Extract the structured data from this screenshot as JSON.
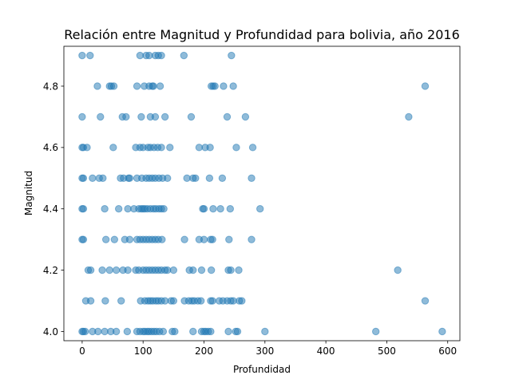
{
  "chart_data": {
    "type": "scatter",
    "title": "Relación entre Magnitud y Profundidad para bolivia, año 2016",
    "xlabel": "Profundidad",
    "ylabel": "Magnitud",
    "xlim": [
      -30,
      620
    ],
    "ylim": [
      3.97,
      4.93
    ],
    "x_ticks": [
      0,
      100,
      200,
      300,
      400,
      500,
      600
    ],
    "y_ticks": [
      4.0,
      4.2,
      4.4,
      4.6,
      4.8
    ],
    "x_tick_labels": [
      "0",
      "100",
      "200",
      "300",
      "400",
      "500",
      "600"
    ],
    "y_tick_labels": [
      "4.0",
      "4.2",
      "4.4",
      "4.6",
      "4.8"
    ],
    "grid": false,
    "marker_color": "#1f77b4",
    "marker_alpha": 0.5,
    "points": [
      [
        0,
        4.9
      ],
      [
        13,
        4.9
      ],
      [
        95,
        4.9
      ],
      [
        105,
        4.9
      ],
      [
        110,
        4.9
      ],
      [
        120,
        4.9
      ],
      [
        125,
        4.9
      ],
      [
        130,
        4.9
      ],
      [
        167,
        4.9
      ],
      [
        245,
        4.9
      ],
      [
        25,
        4.8
      ],
      [
        45,
        4.8
      ],
      [
        48,
        4.8
      ],
      [
        52,
        4.8
      ],
      [
        90,
        4.8
      ],
      [
        102,
        4.8
      ],
      [
        110,
        4.8
      ],
      [
        115,
        4.8
      ],
      [
        117,
        4.8
      ],
      [
        128,
        4.8
      ],
      [
        212,
        4.8
      ],
      [
        215,
        4.8
      ],
      [
        218,
        4.8
      ],
      [
        232,
        4.8
      ],
      [
        248,
        4.8
      ],
      [
        563,
        4.8
      ],
      [
        0,
        4.7
      ],
      [
        30,
        4.7
      ],
      [
        66,
        4.7
      ],
      [
        72,
        4.7
      ],
      [
        97,
        4.7
      ],
      [
        112,
        4.7
      ],
      [
        120,
        4.7
      ],
      [
        136,
        4.7
      ],
      [
        179,
        4.7
      ],
      [
        238,
        4.7
      ],
      [
        268,
        4.7
      ],
      [
        536,
        4.7
      ],
      [
        0,
        4.6
      ],
      [
        2,
        4.6
      ],
      [
        8,
        4.6
      ],
      [
        51,
        4.6
      ],
      [
        88,
        4.6
      ],
      [
        95,
        4.6
      ],
      [
        100,
        4.6
      ],
      [
        108,
        4.6
      ],
      [
        112,
        4.6
      ],
      [
        118,
        4.6
      ],
      [
        124,
        4.6
      ],
      [
        130,
        4.6
      ],
      [
        144,
        4.6
      ],
      [
        192,
        4.6
      ],
      [
        202,
        4.6
      ],
      [
        210,
        4.6
      ],
      [
        253,
        4.6
      ],
      [
        280,
        4.6
      ],
      [
        0,
        4.5
      ],
      [
        2,
        4.5
      ],
      [
        17,
        4.5
      ],
      [
        28,
        4.5
      ],
      [
        34,
        4.5
      ],
      [
        63,
        4.5
      ],
      [
        68,
        4.5
      ],
      [
        76,
        4.5
      ],
      [
        78,
        4.5
      ],
      [
        90,
        4.5
      ],
      [
        98,
        4.5
      ],
      [
        105,
        4.5
      ],
      [
        110,
        4.5
      ],
      [
        115,
        4.5
      ],
      [
        120,
        4.5
      ],
      [
        126,
        4.5
      ],
      [
        132,
        4.5
      ],
      [
        140,
        4.5
      ],
      [
        172,
        4.5
      ],
      [
        182,
        4.5
      ],
      [
        186,
        4.5
      ],
      [
        209,
        4.5
      ],
      [
        230,
        4.5
      ],
      [
        278,
        4.5
      ],
      [
        0,
        4.4
      ],
      [
        2,
        4.4
      ],
      [
        37,
        4.4
      ],
      [
        60,
        4.4
      ],
      [
        75,
        4.4
      ],
      [
        85,
        4.4
      ],
      [
        93,
        4.4
      ],
      [
        97,
        4.4
      ],
      [
        100,
        4.4
      ],
      [
        103,
        4.4
      ],
      [
        107,
        4.4
      ],
      [
        112,
        4.4
      ],
      [
        117,
        4.4
      ],
      [
        121,
        4.4
      ],
      [
        126,
        4.4
      ],
      [
        130,
        4.4
      ],
      [
        134,
        4.4
      ],
      [
        198,
        4.4
      ],
      [
        200,
        4.4
      ],
      [
        215,
        4.4
      ],
      [
        227,
        4.4
      ],
      [
        243,
        4.4
      ],
      [
        292,
        4.4
      ],
      [
        0,
        4.3
      ],
      [
        2,
        4.3
      ],
      [
        39,
        4.3
      ],
      [
        53,
        4.3
      ],
      [
        70,
        4.3
      ],
      [
        78,
        4.3
      ],
      [
        90,
        4.3
      ],
      [
        95,
        4.3
      ],
      [
        100,
        4.3
      ],
      [
        105,
        4.3
      ],
      [
        110,
        4.3
      ],
      [
        115,
        4.3
      ],
      [
        120,
        4.3
      ],
      [
        125,
        4.3
      ],
      [
        131,
        4.3
      ],
      [
        168,
        4.3
      ],
      [
        192,
        4.3
      ],
      [
        200,
        4.3
      ],
      [
        211,
        4.3
      ],
      [
        214,
        4.3
      ],
      [
        241,
        4.3
      ],
      [
        278,
        4.3
      ],
      [
        10,
        4.2
      ],
      [
        14,
        4.2
      ],
      [
        33,
        4.2
      ],
      [
        45,
        4.2
      ],
      [
        56,
        4.2
      ],
      [
        67,
        4.2
      ],
      [
        75,
        4.2
      ],
      [
        88,
        4.2
      ],
      [
        93,
        4.2
      ],
      [
        100,
        4.2
      ],
      [
        105,
        4.2
      ],
      [
        110,
        4.2
      ],
      [
        115,
        4.2
      ],
      [
        120,
        4.2
      ],
      [
        125,
        4.2
      ],
      [
        130,
        4.2
      ],
      [
        136,
        4.2
      ],
      [
        140,
        4.2
      ],
      [
        150,
        4.2
      ],
      [
        176,
        4.2
      ],
      [
        182,
        4.2
      ],
      [
        196,
        4.2
      ],
      [
        212,
        4.2
      ],
      [
        240,
        4.2
      ],
      [
        244,
        4.2
      ],
      [
        257,
        4.2
      ],
      [
        518,
        4.2
      ],
      [
        6,
        4.1
      ],
      [
        14,
        4.1
      ],
      [
        38,
        4.1
      ],
      [
        64,
        4.1
      ],
      [
        96,
        4.1
      ],
      [
        103,
        4.1
      ],
      [
        108,
        4.1
      ],
      [
        112,
        4.1
      ],
      [
        116,
        4.1
      ],
      [
        121,
        4.1
      ],
      [
        125,
        4.1
      ],
      [
        130,
        4.1
      ],
      [
        136,
        4.1
      ],
      [
        146,
        4.1
      ],
      [
        150,
        4.1
      ],
      [
        168,
        4.1
      ],
      [
        175,
        4.1
      ],
      [
        180,
        4.1
      ],
      [
        184,
        4.1
      ],
      [
        190,
        4.1
      ],
      [
        195,
        4.1
      ],
      [
        211,
        4.1
      ],
      [
        214,
        4.1
      ],
      [
        225,
        4.1
      ],
      [
        231,
        4.1
      ],
      [
        238,
        4.1
      ],
      [
        244,
        4.1
      ],
      [
        248,
        4.1
      ],
      [
        258,
        4.1
      ],
      [
        262,
        4.1
      ],
      [
        563,
        4.1
      ],
      [
        0,
        4.0
      ],
      [
        2,
        4.0
      ],
      [
        5,
        4.0
      ],
      [
        17,
        4.0
      ],
      [
        26,
        4.0
      ],
      [
        37,
        4.0
      ],
      [
        47,
        4.0
      ],
      [
        56,
        4.0
      ],
      [
        74,
        4.0
      ],
      [
        90,
        4.0
      ],
      [
        95,
        4.0
      ],
      [
        100,
        4.0
      ],
      [
        103,
        4.0
      ],
      [
        107,
        4.0
      ],
      [
        110,
        4.0
      ],
      [
        114,
        4.0
      ],
      [
        118,
        4.0
      ],
      [
        122,
        4.0
      ],
      [
        127,
        4.0
      ],
      [
        133,
        4.0
      ],
      [
        148,
        4.0
      ],
      [
        152,
        4.0
      ],
      [
        182,
        4.0
      ],
      [
        196,
        4.0
      ],
      [
        200,
        4.0
      ],
      [
        203,
        4.0
      ],
      [
        207,
        4.0
      ],
      [
        211,
        4.0
      ],
      [
        240,
        4.0
      ],
      [
        252,
        4.0
      ],
      [
        255,
        4.0
      ],
      [
        300,
        4.0
      ],
      [
        482,
        4.0
      ],
      [
        591,
        4.0
      ]
    ]
  }
}
